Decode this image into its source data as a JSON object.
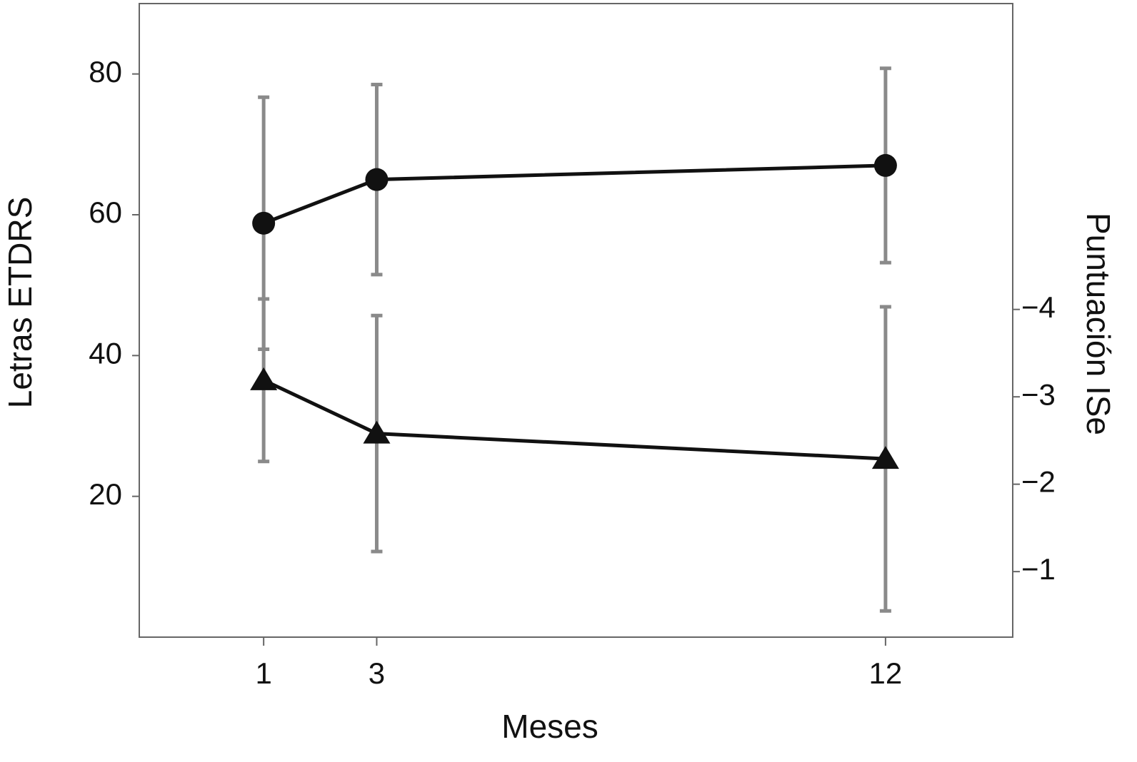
{
  "chart_data": {
    "type": "line",
    "x_label": "Meses",
    "y_label": "Letras ETDRS",
    "y2_label": "Puntuación ISe",
    "x": [
      1,
      3,
      12
    ],
    "xlim": [
      -1.2,
      14.25
    ],
    "xticks": [
      1,
      3,
      12
    ],
    "ylim": [
      0,
      90
    ],
    "yticks": [
      20,
      40,
      60,
      80
    ],
    "y2lim": [
      -0.25,
      -7.5
    ],
    "y2ticks": [
      {
        "value": -4,
        "label": "−4"
      },
      {
        "value": -3,
        "label": "−3"
      },
      {
        "value": -2,
        "label": "−2"
      },
      {
        "value": -1,
        "label": "−1"
      }
    ],
    "series": [
      {
        "marker": "circle",
        "color": "#111111",
        "error_color": "#8a8a8a",
        "values": [
          58.8,
          65.0,
          67.0
        ],
        "errors": [
          17.9,
          13.5,
          13.8
        ]
      },
      {
        "marker": "triangle",
        "axis": "y2",
        "color": "#111111",
        "error_color": "#8a8a8a",
        "values": [
          -3.19,
          -2.58,
          -2.29
        ],
        "errors": [
          0.93,
          1.35,
          1.74
        ]
      }
    ]
  }
}
